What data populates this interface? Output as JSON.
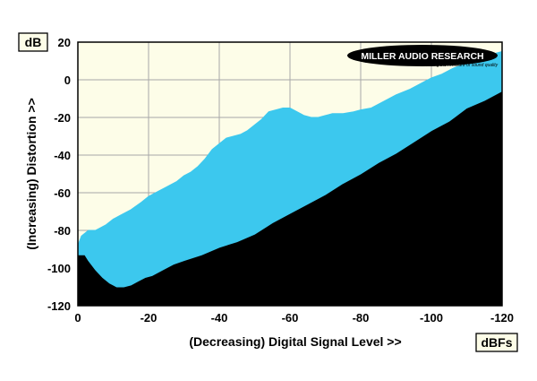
{
  "chart_data": {
    "type": "area",
    "xlabel": "(Decreasing) Digital Signal Level >>",
    "ylabel": "(Increasing) Distortion >>",
    "y_unit": "dB",
    "x_unit": "dBFs",
    "xlim": [
      0,
      -120
    ],
    "ylim": [
      -120,
      20
    ],
    "x_ticks": [
      0,
      -20,
      -40,
      -60,
      -80,
      -100,
      -120
    ],
    "x_tick_labels": [
      "0",
      "-20",
      "-40",
      "-60",
      "-80",
      "-100",
      "-120"
    ],
    "y_ticks": [
      20,
      0,
      -20,
      -40,
      -60,
      -80,
      -100,
      -120
    ],
    "y_tick_labels": [
      "20",
      "0",
      "-20",
      "-40",
      "-60",
      "-80",
      "-100",
      "-120"
    ],
    "grid": true,
    "series": [
      {
        "role": "upper",
        "x": [
          0,
          -1,
          -3,
          -5,
          -8,
          -10,
          -12,
          -15,
          -18,
          -20,
          -22,
          -25,
          -28,
          -30,
          -32,
          -34,
          -36,
          -38,
          -40,
          -42,
          -44,
          -46,
          -48,
          -50,
          -52,
          -54,
          -56,
          -58,
          -60,
          -62,
          -64,
          -66,
          -68,
          -70,
          -72,
          -75,
          -78,
          -80,
          -83,
          -86,
          -90,
          -94,
          -98,
          -100,
          -103,
          -106,
          -110,
          -114,
          -118,
          -120
        ],
        "values": [
          -88,
          -83,
          -80,
          -80,
          -77,
          -74,
          -72,
          -69,
          -65,
          -62,
          -60,
          -57,
          -54,
          -51,
          -49,
          -46,
          -42,
          -37,
          -34,
          -31,
          -30,
          -29,
          -27,
          -24,
          -21,
          -17,
          -16,
          -15,
          -15,
          -17,
          -19,
          -20,
          -20,
          -19,
          -18,
          -18,
          -17,
          -16,
          -15,
          -12,
          -8,
          -5,
          -1,
          1,
          3,
          6,
          9,
          12,
          14,
          15
        ]
      },
      {
        "role": "lower",
        "x": [
          0,
          -1,
          -2,
          -3,
          -5,
          -7,
          -9,
          -11,
          -13,
          -15,
          -17,
          -19,
          -21,
          -24,
          -27,
          -30,
          -35,
          -40,
          -45,
          -50,
          -55,
          -60,
          -65,
          -70,
          -75,
          -80,
          -85,
          -90,
          -95,
          -100,
          -105,
          -110,
          -115,
          -120
        ],
        "values": [
          -93,
          -93,
          -93,
          -96,
          -101,
          -105,
          -108,
          -110,
          -110,
          -109,
          -107,
          -105,
          -104,
          -101,
          -98,
          -96,
          -93,
          -89,
          -86,
          -82,
          -76,
          -71,
          -66,
          -61,
          -55,
          -50,
          -44,
          -39,
          -33,
          -27,
          -22,
          -15,
          -11,
          -6
        ]
      }
    ],
    "fill_color": "#3cc8ee",
    "plot_bg": "#fdfde8",
    "below_color": "#000000"
  },
  "logo": {
    "name": "MILLER AUDIO RESEARCH",
    "tagline": "setting the measure of sound quality"
  }
}
